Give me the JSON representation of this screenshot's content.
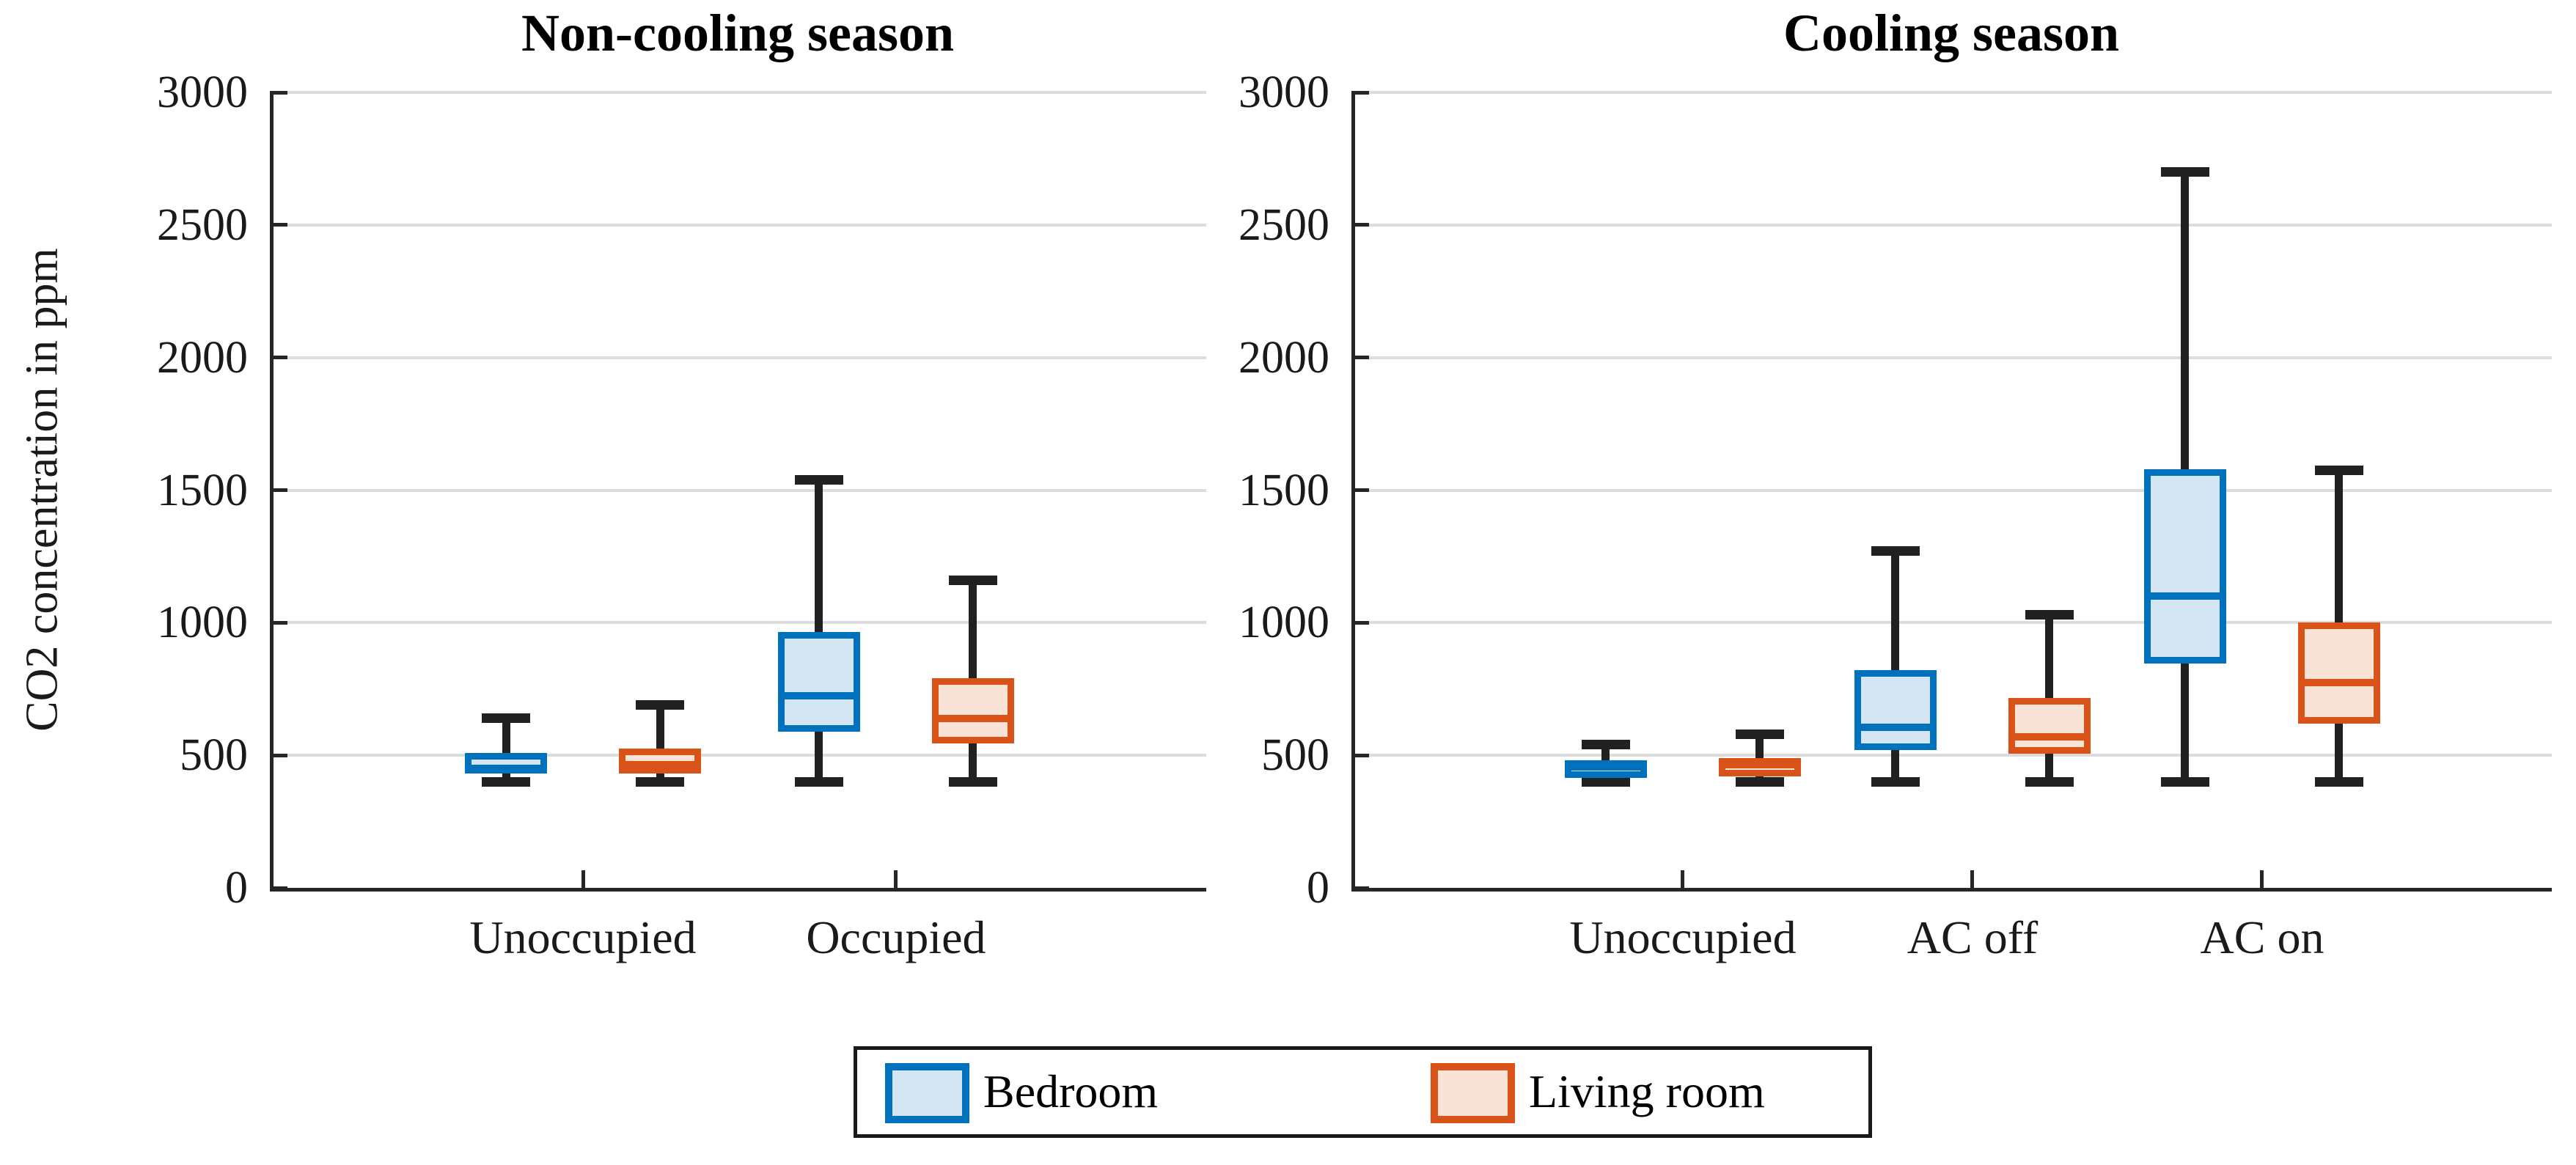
{
  "chart_data": {
    "type": "boxplot",
    "ylabel": "CO2 concentration in ppm",
    "ylim": [
      0,
      3000
    ],
    "yticks": [
      0,
      500,
      1000,
      1500,
      2000,
      2500,
      3000
    ],
    "grid": "horizontal",
    "legend_position": "bottom",
    "series": [
      {
        "name": "Bedroom",
        "edge_color": "#0072BD",
        "fill_color": "#D4E6F4"
      },
      {
        "name": "Living room",
        "edge_color": "#D95319",
        "fill_color": "#F9E2D6"
      }
    ],
    "whisker_color": "#212121",
    "panels": [
      {
        "title": "Non-cooling season",
        "categories": [
          "Unoccupied",
          "Occupied"
        ],
        "boxes": [
          {
            "series": "Bedroom",
            "category": "Unoccupied",
            "whisker_low": 400,
            "q1": 430,
            "median": 450,
            "q3": 510,
            "whisker_high": 640
          },
          {
            "series": "Living room",
            "category": "Unoccupied",
            "whisker_low": 400,
            "q1": 430,
            "median": 465,
            "q3": 525,
            "whisker_high": 690
          },
          {
            "series": "Bedroom",
            "category": "Occupied",
            "whisker_low": 400,
            "q1": 590,
            "median": 725,
            "q3": 965,
            "whisker_high": 1540
          },
          {
            "series": "Living room",
            "category": "Occupied",
            "whisker_low": 400,
            "q1": 545,
            "median": 640,
            "q3": 790,
            "whisker_high": 1160
          }
        ]
      },
      {
        "title": "Cooling season",
        "categories": [
          "Unoccupied",
          "AC off",
          "AC on"
        ],
        "boxes": [
          {
            "series": "Bedroom",
            "category": "Unoccupied",
            "whisker_low": 400,
            "q1": 415,
            "median": 455,
            "q3": 480,
            "whisker_high": 540
          },
          {
            "series": "Living room",
            "category": "Unoccupied",
            "whisker_low": 400,
            "q1": 420,
            "median": 465,
            "q3": 490,
            "whisker_high": 580
          },
          {
            "series": "Bedroom",
            "category": "AC off",
            "whisker_low": 400,
            "q1": 520,
            "median": 605,
            "q3": 820,
            "whisker_high": 1270
          },
          {
            "series": "Living room",
            "category": "AC off",
            "whisker_low": 400,
            "q1": 505,
            "median": 570,
            "q3": 715,
            "whisker_high": 1030
          },
          {
            "series": "Bedroom",
            "category": "AC on",
            "whisker_low": 400,
            "q1": 845,
            "median": 1100,
            "q3": 1580,
            "whisker_high": 2700
          },
          {
            "series": "Living room",
            "category": "AC on",
            "whisker_low": 400,
            "q1": 620,
            "median": 775,
            "q3": 1000,
            "whisker_high": 1575
          }
        ]
      }
    ],
    "legend": {
      "entries": [
        "Bedroom",
        "Living room"
      ]
    }
  }
}
